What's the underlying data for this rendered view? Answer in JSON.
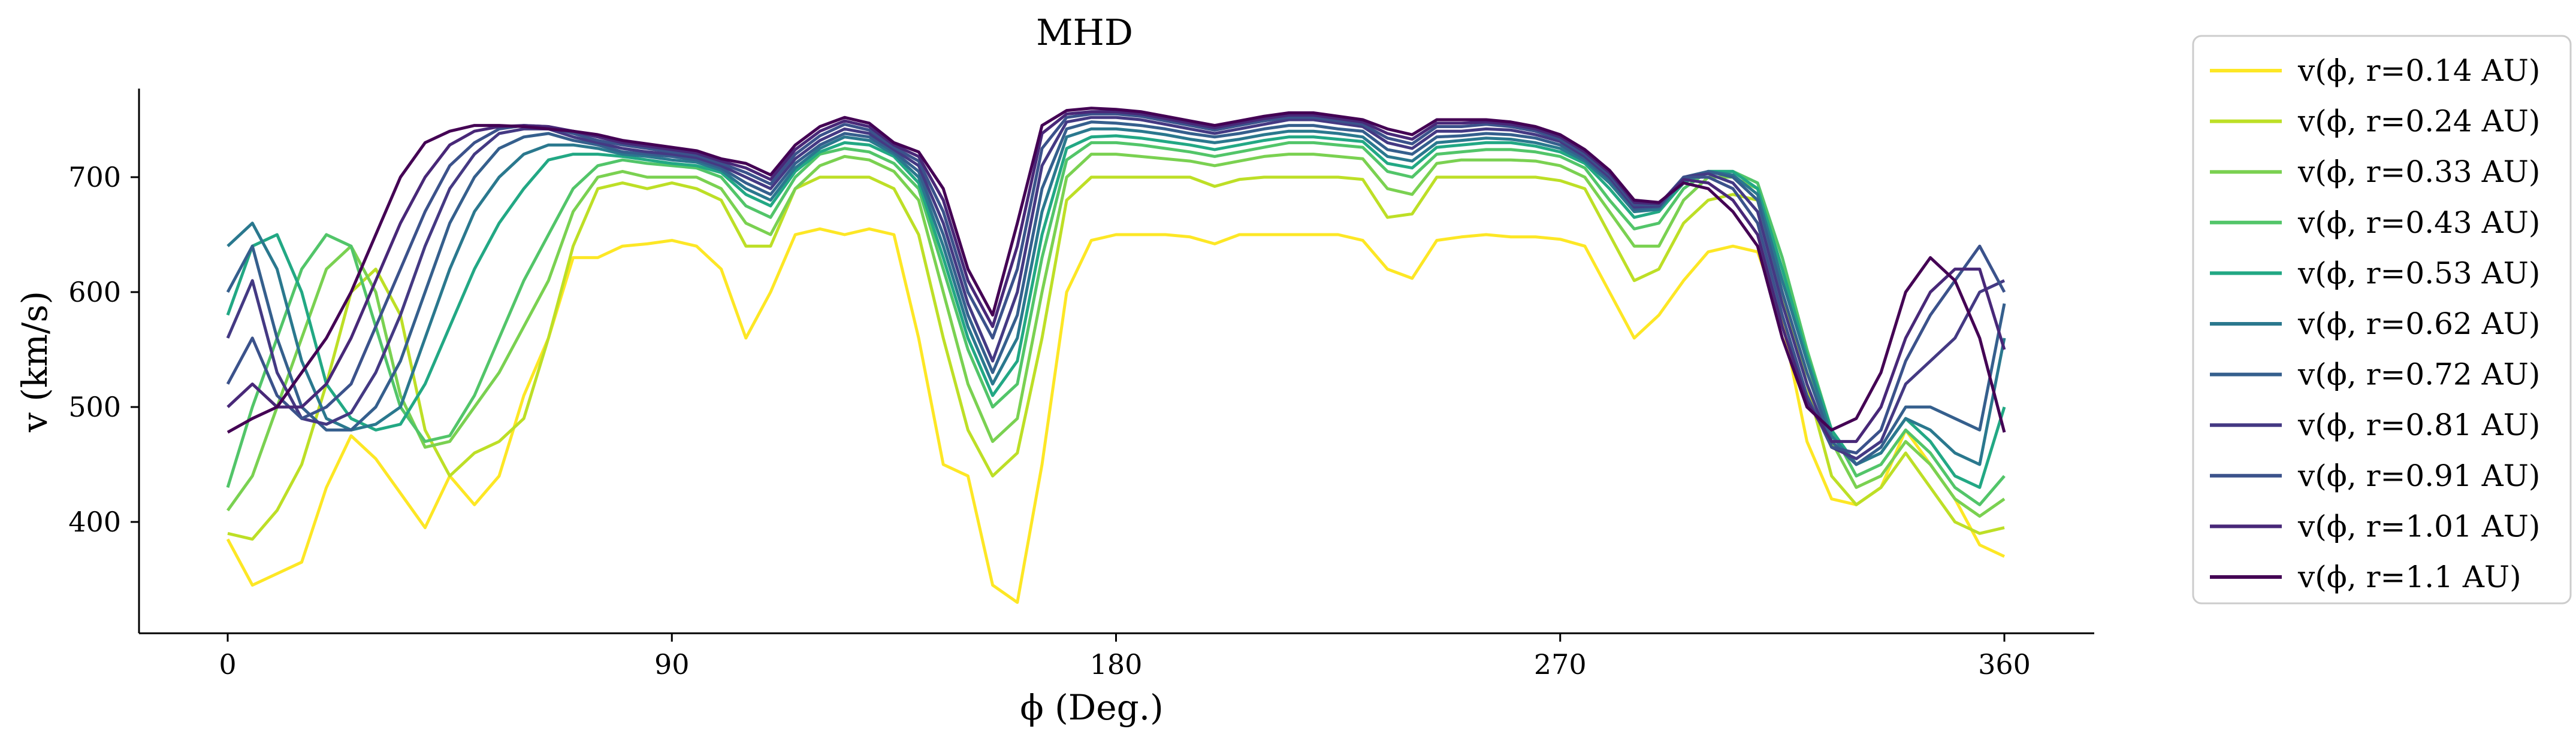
{
  "chart_data": {
    "type": "line",
    "title": "MHD",
    "xlabel": "ϕ (Deg.)",
    "ylabel": "v (km/s)",
    "xlim": [
      -20,
      400
    ],
    "ylim": [
      320,
      780
    ],
    "xticks": [
      0,
      90,
      180,
      270,
      360
    ],
    "yticks": [
      400,
      500,
      600,
      700
    ],
    "grid": false,
    "legend_position": "outside right",
    "x": [
      0,
      5,
      10,
      15,
      20,
      25,
      30,
      35,
      40,
      45,
      50,
      55,
      60,
      65,
      70,
      75,
      80,
      85,
      90,
      95,
      100,
      105,
      110,
      115,
      120,
      125,
      130,
      135,
      140,
      145,
      150,
      155,
      160,
      165,
      170,
      175,
      180,
      185,
      190,
      195,
      200,
      205,
      210,
      215,
      220,
      225,
      230,
      235,
      240,
      245,
      250,
      255,
      260,
      265,
      270,
      275,
      280,
      285,
      290,
      295,
      300,
      305,
      310,
      315,
      320,
      325,
      330,
      335,
      340,
      345,
      350,
      355,
      360
    ],
    "series": [
      {
        "name": "v(ϕ, r=0.14 AU)",
        "color": "#fde725",
        "values": [
          385,
          345,
          355,
          365,
          430,
          475,
          455,
          425,
          395,
          440,
          415,
          440,
          510,
          560,
          630,
          630,
          640,
          642,
          645,
          640,
          620,
          560,
          600,
          650,
          655,
          650,
          655,
          650,
          560,
          450,
          440,
          345,
          330,
          450,
          600,
          645,
          650,
          650,
          650,
          648,
          642,
          650,
          650,
          650,
          650,
          650,
          645,
          620,
          612,
          645,
          648,
          650,
          648,
          648,
          646,
          640,
          600,
          560,
          580,
          610,
          635,
          640,
          635,
          575,
          470,
          420,
          415,
          430,
          480,
          450,
          420,
          380,
          370
        ]
      },
      {
        "name": "v(ϕ, r=0.24 AU)",
        "color": "#bddf26",
        "values": [
          390,
          385,
          410,
          450,
          520,
          600,
          620,
          580,
          480,
          440,
          460,
          470,
          490,
          560,
          640,
          690,
          695,
          690,
          695,
          690,
          680,
          640,
          640,
          690,
          700,
          700,
          700,
          690,
          650,
          560,
          480,
          440,
          460,
          560,
          680,
          700,
          700,
          700,
          700,
          700,
          692,
          698,
          700,
          700,
          700,
          700,
          698,
          665,
          668,
          700,
          700,
          700,
          700,
          700,
          697,
          690,
          650,
          610,
          620,
          660,
          680,
          685,
          680,
          600,
          520,
          440,
          415,
          430,
          460,
          430,
          400,
          390,
          395
        ]
      },
      {
        "name": "v(ϕ, r=0.33 AU)",
        "color": "#7ad151",
        "values": [
          410,
          440,
          500,
          560,
          620,
          640,
          600,
          510,
          465,
          470,
          500,
          530,
          570,
          610,
          670,
          700,
          705,
          700,
          700,
          700,
          690,
          660,
          650,
          690,
          710,
          718,
          715,
          705,
          680,
          600,
          520,
          470,
          490,
          600,
          700,
          720,
          720,
          718,
          716,
          714,
          710,
          714,
          718,
          720,
          720,
          718,
          716,
          690,
          685,
          712,
          715,
          715,
          715,
          714,
          710,
          700,
          670,
          640,
          640,
          680,
          700,
          700,
          690,
          620,
          540,
          470,
          430,
          440,
          470,
          450,
          420,
          405,
          420
        ]
      },
      {
        "name": "v(ϕ, r=0.43 AU)",
        "color": "#52c569",
        "values": [
          430,
          500,
          560,
          620,
          650,
          640,
          570,
          500,
          470,
          475,
          510,
          560,
          610,
          650,
          690,
          710,
          715,
          712,
          710,
          708,
          700,
          675,
          665,
          700,
          720,
          725,
          722,
          712,
          690,
          620,
          550,
          500,
          520,
          630,
          715,
          730,
          730,
          728,
          725,
          722,
          718,
          722,
          726,
          730,
          730,
          728,
          726,
          705,
          700,
          720,
          722,
          724,
          724,
          722,
          718,
          708,
          680,
          655,
          660,
          690,
          705,
          705,
          695,
          630,
          550,
          480,
          440,
          450,
          480,
          460,
          430,
          415,
          440
        ]
      },
      {
        "name": "v(ϕ, r=0.53 AU)",
        "color": "#22a884",
        "values": [
          580,
          640,
          650,
          600,
          520,
          490,
          480,
          485,
          520,
          570,
          620,
          660,
          690,
          715,
          720,
          720,
          718,
          715,
          712,
          710,
          704,
          685,
          675,
          705,
          722,
          730,
          728,
          718,
          695,
          630,
          560,
          510,
          540,
          650,
          725,
          735,
          736,
          734,
          731,
          728,
          724,
          728,
          732,
          735,
          735,
          733,
          731,
          712,
          708,
          726,
          728,
          730,
          730,
          727,
          722,
          712,
          690,
          665,
          670,
          695,
          705,
          705,
          690,
          620,
          545,
          480,
          450,
          460,
          490,
          470,
          440,
          430,
          500
        ]
      },
      {
        "name": "v(ϕ, r=0.62 AU)",
        "color": "#2a788e",
        "values": [
          640,
          660,
          620,
          540,
          490,
          480,
          485,
          500,
          560,
          620,
          670,
          700,
          720,
          728,
          728,
          725,
          720,
          718,
          715,
          713,
          706,
          690,
          680,
          708,
          725,
          735,
          732,
          720,
          700,
          640,
          570,
          520,
          560,
          670,
          735,
          742,
          742,
          740,
          737,
          733,
          730,
          733,
          737,
          740,
          740,
          738,
          735,
          718,
          714,
          730,
          732,
          734,
          733,
          730,
          725,
          714,
          695,
          670,
          672,
          698,
          705,
          702,
          685,
          610,
          540,
          475,
          450,
          460,
          490,
          480,
          460,
          450,
          560
        ]
      },
      {
        "name": "v(ϕ, r=0.72 AU)",
        "color": "#355f8d",
        "values": [
          600,
          640,
          560,
          500,
          480,
          480,
          500,
          540,
          600,
          660,
          700,
          725,
          735,
          738,
          732,
          728,
          722,
          720,
          718,
          715,
          708,
          695,
          685,
          712,
          728,
          738,
          735,
          722,
          705,
          650,
          580,
          530,
          580,
          690,
          742,
          748,
          747,
          745,
          742,
          738,
          735,
          738,
          742,
          745,
          745,
          742,
          740,
          724,
          720,
          735,
          736,
          738,
          737,
          734,
          728,
          716,
          698,
          672,
          674,
          700,
          705,
          700,
          680,
          600,
          530,
          470,
          450,
          465,
          500,
          500,
          490,
          480,
          590
        ]
      },
      {
        "name": "v(ϕ, r=0.81 AU)",
        "color": "#443983",
        "values": [
          560,
          610,
          530,
          490,
          485,
          495,
          530,
          580,
          640,
          690,
          720,
          738,
          742,
          742,
          735,
          730,
          725,
          722,
          720,
          717,
          710,
          700,
          690,
          716,
          732,
          742,
          738,
          724,
          710,
          660,
          590,
          540,
          600,
          710,
          748,
          752,
          752,
          750,
          746,
          742,
          738,
          742,
          746,
          750,
          750,
          747,
          744,
          730,
          725,
          740,
          740,
          742,
          741,
          737,
          731,
          718,
          700,
          674,
          675,
          700,
          703,
          695,
          670,
          590,
          520,
          465,
          455,
          470,
          520,
          540,
          560,
          600,
          610
        ]
      },
      {
        "name": "v(ϕ, r=0.91 AU)",
        "color": "#3b528b",
        "values": [
          520,
          560,
          510,
          490,
          500,
          520,
          570,
          620,
          670,
          710,
          730,
          742,
          745,
          744,
          738,
          732,
          728,
          725,
          722,
          719,
          712,
          704,
          694,
          720,
          736,
          746,
          741,
          726,
          714,
          670,
          600,
          560,
          620,
          725,
          752,
          755,
          755,
          753,
          749,
          745,
          741,
          745,
          749,
          752,
          752,
          749,
          746,
          734,
          729,
          744,
          744,
          746,
          744,
          740,
          733,
          720,
          702,
          676,
          676,
          700,
          700,
          690,
          660,
          580,
          510,
          465,
          460,
          480,
          540,
          580,
          610,
          640,
          600
        ]
      },
      {
        "name": "v(ϕ, r=1.01 AU)",
        "color": "#482878",
        "values": [
          500,
          520,
          500,
          500,
          520,
          560,
          610,
          660,
          700,
          728,
          740,
          744,
          745,
          744,
          740,
          735,
          730,
          727,
          724,
          721,
          714,
          708,
          698,
          724,
          740,
          749,
          744,
          728,
          718,
          680,
          610,
          570,
          640,
          738,
          755,
          757,
          757,
          755,
          751,
          747,
          743,
          747,
          751,
          754,
          754,
          751,
          748,
          738,
          733,
          747,
          747,
          748,
          746,
          742,
          735,
          722,
          704,
          678,
          677,
          698,
          695,
          680,
          650,
          570,
          505,
          470,
          470,
          500,
          560,
          600,
          620,
          620,
          550
        ]
      },
      {
        "name": "v(ϕ, r=1.1 AU)",
        "color": "#440154",
        "values": [
          478,
          490,
          500,
          530,
          560,
          600,
          650,
          700,
          730,
          740,
          745,
          745,
          744,
          742,
          740,
          737,
          732,
          729,
          726,
          723,
          716,
          712,
          702,
          728,
          744,
          752,
          747,
          730,
          722,
          690,
          620,
          580,
          660,
          745,
          758,
          760,
          759,
          757,
          753,
          749,
          745,
          749,
          753,
          756,
          756,
          753,
          750,
          742,
          737,
          750,
          750,
          750,
          748,
          744,
          737,
          724,
          706,
          680,
          678,
          695,
          690,
          670,
          640,
          560,
          500,
          480,
          490,
          530,
          600,
          630,
          610,
          560,
          478
        ]
      }
    ]
  }
}
